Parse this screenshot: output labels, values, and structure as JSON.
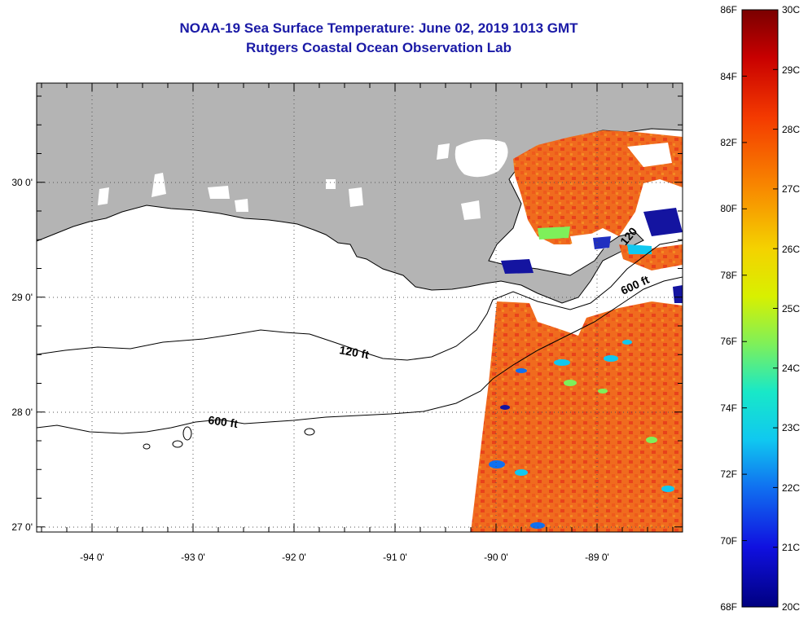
{
  "title": "NOAA-19 Sea Surface Temperature:  June 02, 2019 1013 GMT",
  "subtitle": "Rutgers Coastal Ocean Observation Lab",
  "axes": {
    "x_ticks": [
      "-94 0'",
      "-93 0'",
      "-92 0'",
      "-91 0'",
      "-90 0'",
      "-89 0'"
    ],
    "y_ticks": [
      "30 0'",
      "29 0'",
      "28 0'",
      "27 0'"
    ]
  },
  "contours": {
    "c120_label": "120 ft",
    "c600_label": "600 ft",
    "c120_label_east": "120",
    "c600_label_east": "600 ft"
  },
  "colorbar": {
    "f_labels": [
      "86F",
      "84F",
      "82F",
      "80F",
      "78F",
      "76F",
      "74F",
      "72F",
      "70F",
      "68F"
    ],
    "c_labels": [
      "30C",
      "29C",
      "28C",
      "27C",
      "26C",
      "25C",
      "24C",
      "23C",
      "22C",
      "21C",
      "20C"
    ]
  },
  "colors": {
    "land": "#b4b4b4",
    "title": "#1a1aa6",
    "sst_warm": "#f26a1c",
    "sst_hot": "#e2341a",
    "cold_patch": "#1414a0"
  }
}
